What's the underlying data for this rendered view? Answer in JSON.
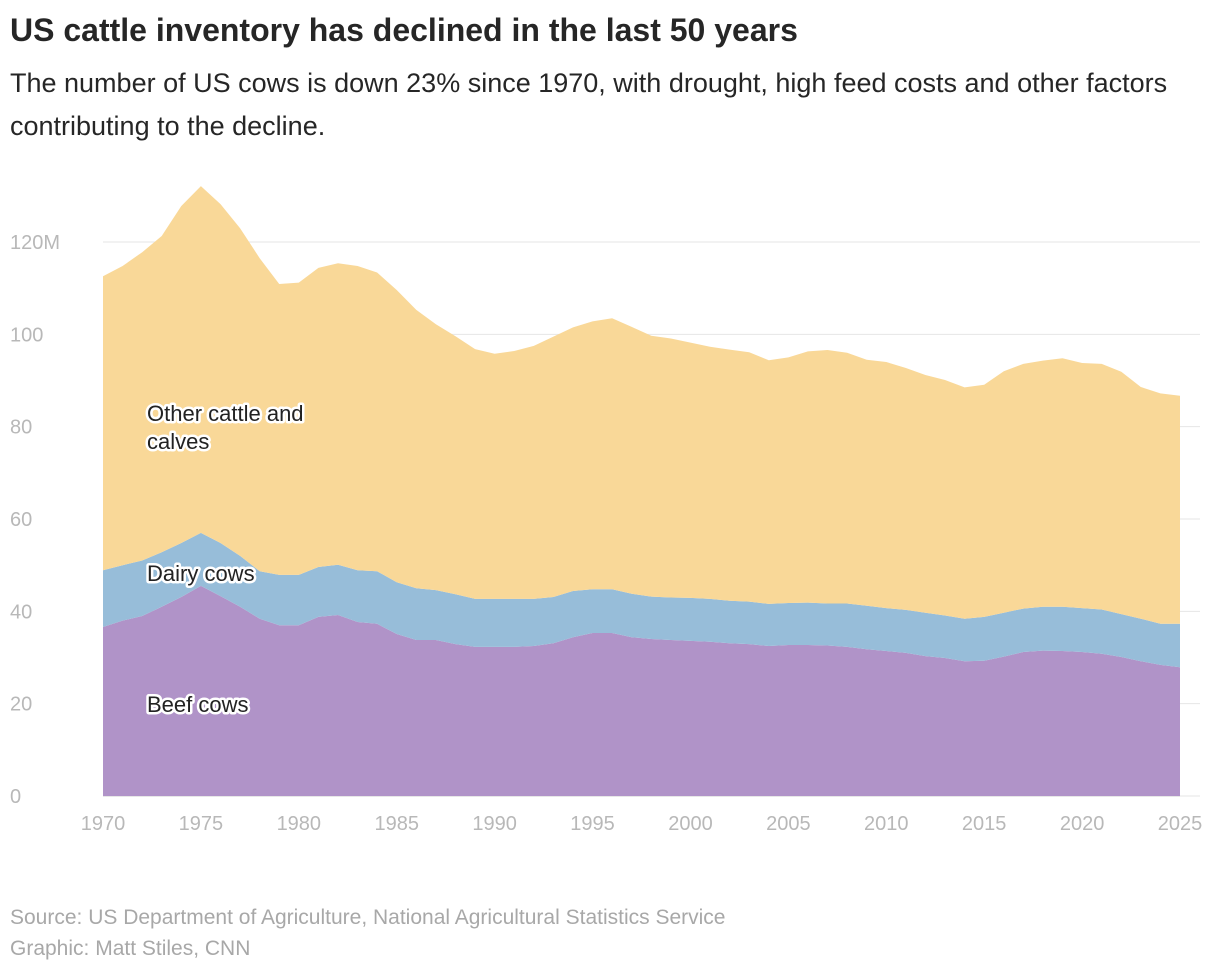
{
  "title": "US cattle inventory has declined in the last 50 years",
  "subtitle": "The number of US cows is down 23% since 1970, with drought, high feed costs and other factors contributing to the decline.",
  "source": "Source: US Department of Agriculture, National Agricultural Statistics Service",
  "credit": "Graphic: Matt Stiles, CNN",
  "chart_data": {
    "type": "area",
    "stacked": true,
    "title": "US cattle inventory has declined in the last 50 years",
    "x": [
      1970,
      1971,
      1972,
      1973,
      1974,
      1975,
      1976,
      1977,
      1978,
      1979,
      1980,
      1981,
      1982,
      1983,
      1984,
      1985,
      1986,
      1987,
      1988,
      1989,
      1990,
      1991,
      1992,
      1993,
      1994,
      1995,
      1996,
      1997,
      1998,
      1999,
      2000,
      2001,
      2002,
      2003,
      2004,
      2005,
      2006,
      2007,
      2008,
      2009,
      2010,
      2011,
      2012,
      2013,
      2014,
      2015,
      2016,
      2017,
      2018,
      2019,
      2020,
      2021,
      2022,
      2023,
      2024,
      2025
    ],
    "xticks": [
      "1970",
      "1975",
      "1980",
      "1985",
      "1990",
      "1995",
      "2000",
      "2005",
      "2010",
      "2015",
      "2020",
      "2025"
    ],
    "yticks": [
      "0",
      "20",
      "40",
      "60",
      "80",
      "100",
      "120M"
    ],
    "ylim": [
      0,
      135
    ],
    "xlim": [
      1970,
      2025
    ],
    "grid": true,
    "unit": "millions",
    "series": [
      {
        "name": "Beef cows",
        "color": "#b093c8",
        "values": [
          36.6,
          38.0,
          39.0,
          41.0,
          43.1,
          45.5,
          43.3,
          41.0,
          38.4,
          37.0,
          37.0,
          38.8,
          39.2,
          37.7,
          37.3,
          35.1,
          33.8,
          33.8,
          32.9,
          32.3,
          32.3,
          32.3,
          32.5,
          33.1,
          34.4,
          35.3,
          35.3,
          34.4,
          34.0,
          33.8,
          33.6,
          33.4,
          33.1,
          32.9,
          32.5,
          32.7,
          32.7,
          32.6,
          32.3,
          31.8,
          31.4,
          31.0,
          30.3,
          29.9,
          29.2,
          29.3,
          30.2,
          31.2,
          31.5,
          31.4,
          31.2,
          30.8,
          30.1,
          29.2,
          28.4,
          27.9
        ]
      },
      {
        "name": "Dairy cows",
        "color": "#97bdd9",
        "values": [
          12.3,
          12.0,
          12.0,
          11.8,
          11.7,
          11.5,
          11.5,
          11.0,
          10.3,
          10.9,
          10.9,
          10.8,
          10.9,
          11.2,
          11.4,
          11.2,
          11.2,
          10.8,
          10.8,
          10.4,
          10.4,
          10.4,
          10.2,
          10.0,
          10.0,
          9.5,
          9.5,
          9.4,
          9.2,
          9.2,
          9.3,
          9.3,
          9.2,
          9.2,
          9.1,
          9.1,
          9.2,
          9.1,
          9.4,
          9.4,
          9.3,
          9.3,
          9.4,
          9.2,
          9.2,
          9.5,
          9.5,
          9.4,
          9.5,
          9.6,
          9.5,
          9.6,
          9.3,
          9.2,
          8.9,
          9.4
        ]
      },
      {
        "name": "Other cattle and calves",
        "color": "#f9d898",
        "values": [
          63.7,
          64.8,
          66.8,
          68.5,
          73.0,
          75.1,
          73.4,
          71.0,
          67.8,
          63.0,
          63.3,
          64.8,
          65.3,
          65.9,
          64.7,
          63.3,
          60.3,
          57.6,
          55.9,
          54.1,
          53.1,
          53.7,
          54.8,
          56.4,
          57.1,
          58.0,
          58.7,
          57.8,
          56.5,
          56.1,
          55.3,
          54.6,
          54.4,
          54.0,
          52.8,
          53.2,
          54.4,
          54.9,
          54.3,
          53.3,
          53.3,
          52.4,
          51.5,
          51.0,
          50.1,
          50.3,
          52.3,
          53.0,
          53.3,
          53.8,
          53.1,
          53.2,
          52.5,
          50.2,
          49.9,
          49.4
        ]
      }
    ],
    "labels": {
      "beef": "Beef cows",
      "dairy": "Dairy cows",
      "other_line1": "Other cattle and",
      "other_line2": "calves"
    }
  }
}
